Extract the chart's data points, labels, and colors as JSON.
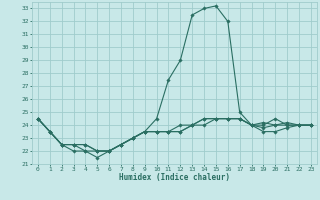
{
  "xlabel": "Humidex (Indice chaleur)",
  "x_ticks": [
    0,
    1,
    2,
    3,
    4,
    5,
    6,
    7,
    8,
    9,
    10,
    11,
    12,
    13,
    14,
    15,
    16,
    17,
    18,
    19,
    20,
    21,
    22,
    23
  ],
  "ylim": [
    21,
    33.5
  ],
  "xlim": [
    -0.5,
    23.5
  ],
  "y_ticks": [
    21,
    22,
    23,
    24,
    25,
    26,
    27,
    28,
    29,
    30,
    31,
    32,
    33
  ],
  "bg_color": "#c8e8e8",
  "grid_color": "#a0cccc",
  "line_color": "#2a6e62",
  "lines": [
    [
      24.5,
      23.5,
      22.5,
      22.0,
      22.0,
      21.5,
      22.0,
      22.5,
      23.0,
      23.5,
      24.5,
      27.5,
      29.0,
      32.5,
      33.0,
      33.2,
      32.0,
      25.0,
      24.0,
      24.2,
      24.0,
      24.0,
      24.0,
      24.0
    ],
    [
      24.5,
      23.5,
      22.5,
      22.5,
      22.0,
      22.0,
      22.0,
      22.5,
      23.0,
      23.5,
      23.5,
      23.5,
      23.5,
      24.0,
      24.0,
      24.5,
      24.5,
      24.5,
      24.0,
      23.8,
      24.0,
      24.2,
      24.0,
      24.0
    ],
    [
      24.5,
      23.5,
      22.5,
      22.5,
      22.5,
      22.0,
      22.0,
      22.5,
      23.0,
      23.5,
      23.5,
      23.5,
      23.5,
      24.0,
      24.5,
      24.5,
      24.5,
      24.5,
      24.0,
      23.5,
      23.5,
      23.8,
      24.0,
      24.0
    ],
    [
      24.5,
      23.5,
      22.5,
      22.5,
      22.5,
      22.0,
      22.0,
      22.5,
      23.0,
      23.5,
      23.5,
      23.5,
      24.0,
      24.0,
      24.5,
      24.5,
      24.5,
      24.5,
      24.0,
      24.0,
      24.5,
      24.0,
      24.0,
      24.0
    ]
  ]
}
